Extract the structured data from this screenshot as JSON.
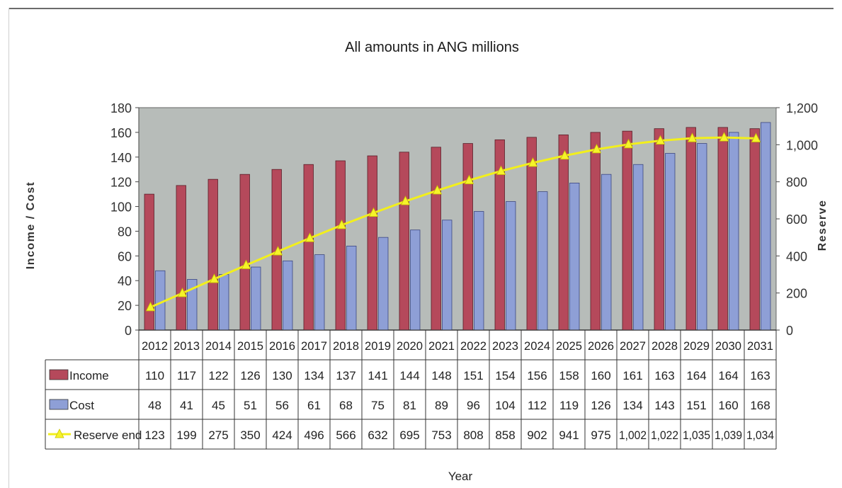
{
  "chart_data": {
    "type": "bar",
    "title": "All amounts in ANG millions",
    "xlabel": "Year",
    "ylabel": "Income / Cost",
    "y2label": "Reserve",
    "ylim": [
      0,
      180
    ],
    "y2lim": [
      0,
      1200
    ],
    "yticks": [
      "0",
      "20",
      "40",
      "60",
      "80",
      "100",
      "120",
      "140",
      "160",
      "180"
    ],
    "y2ticks": [
      "0",
      "200",
      "400",
      "600",
      "800",
      "1,000",
      "1,200"
    ],
    "grid": true,
    "legend": "data table, left",
    "categories": [
      "2012",
      "2013",
      "2014",
      "2015",
      "2016",
      "2017",
      "2018",
      "2019",
      "2020",
      "2021",
      "2022",
      "2023",
      "2024",
      "2025",
      "2026",
      "2027",
      "2028",
      "2029",
      "2030",
      "2031"
    ],
    "series": [
      {
        "name": "Income",
        "type": "bar",
        "axis": "left",
        "color": "#b5495b",
        "values": [
          110,
          117,
          122,
          126,
          130,
          134,
          137,
          141,
          144,
          148,
          151,
          154,
          156,
          158,
          160,
          161,
          163,
          164,
          164,
          163
        ],
        "labels": [
          "110",
          "117",
          "122",
          "126",
          "130",
          "134",
          "137",
          "141",
          "144",
          "148",
          "151",
          "154",
          "156",
          "158",
          "160",
          "161",
          "163",
          "164",
          "164",
          "163"
        ]
      },
      {
        "name": "Cost",
        "type": "bar",
        "axis": "left",
        "color": "#8e9fd6",
        "values": [
          48,
          41,
          45,
          51,
          56,
          61,
          68,
          75,
          81,
          89,
          96,
          104,
          112,
          119,
          126,
          134,
          143,
          151,
          160,
          168
        ],
        "labels": [
          "48",
          "41",
          "45",
          "51",
          "56",
          "61",
          "68",
          "75",
          "81",
          "89",
          "96",
          "104",
          "112",
          "119",
          "126",
          "134",
          "143",
          "151",
          "160",
          "168"
        ]
      },
      {
        "name": "Reserve end",
        "type": "line",
        "axis": "right",
        "color": "#f2ef1c",
        "values": [
          123,
          199,
          275,
          350,
          424,
          496,
          566,
          632,
          695,
          753,
          808,
          858,
          902,
          941,
          975,
          1002,
          1022,
          1035,
          1039,
          1034
        ],
        "labels": [
          "123",
          "199",
          "275",
          "350",
          "424",
          "496",
          "566",
          "632",
          "695",
          "753",
          "808",
          "858",
          "902",
          "941",
          "975",
          "1,002",
          "1,022",
          "1,035",
          "1,039",
          "1,034"
        ]
      }
    ],
    "plot_background": "#b7bcb9"
  }
}
